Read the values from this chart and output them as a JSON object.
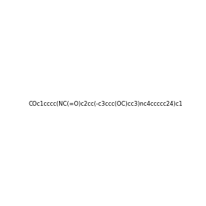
{
  "smiles": "COc1cccc(NC(=O)c2cc(-c3ccc(OC)cc3)nc4ccccc24)c1",
  "title": "",
  "bg_color": "#f0f0f0",
  "bond_color": "#1a1a1a",
  "n_color": "#1a1aff",
  "o_color": "#ff2200",
  "nh_color": "#4a8a8a",
  "figsize": [
    3.0,
    3.0
  ],
  "dpi": 100
}
